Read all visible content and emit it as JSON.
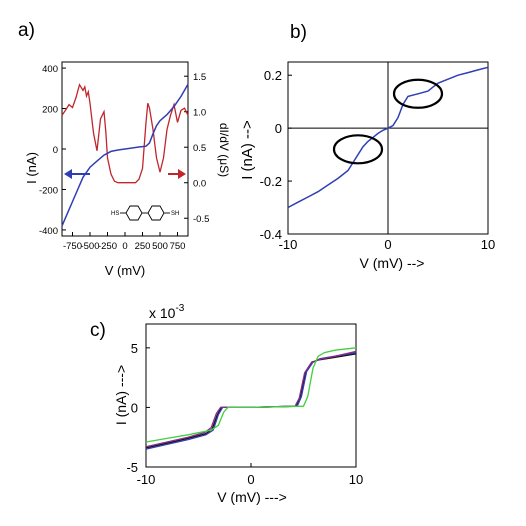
{
  "colors": {
    "blue": "#2f3fb3",
    "red": "#c0262b",
    "green": "#3fd13f",
    "black": "#111111",
    "purple": "#8a2a8a"
  },
  "chart_data": [
    {
      "panel": "a)",
      "type": "line",
      "xlabel": "V (mV)",
      "ylabel": "I (nA)",
      "ylabel_right": "dI/dV (μS)",
      "xlim": [
        -900,
        900
      ],
      "ylim": [
        -430,
        430
      ],
      "ylim_right": [
        -0.75,
        1.7
      ],
      "xticks": [
        "-750",
        "-500",
        "-250",
        "0",
        "250",
        "500",
        "750"
      ],
      "yticks": [
        "-400",
        "-200",
        "0",
        "200",
        "400"
      ],
      "yticks_right": [
        "-0.5",
        "0.0",
        "0.5",
        "1.0",
        "1.5"
      ],
      "grid": false,
      "series": [
        {
          "axis": "left",
          "color": "#2f3fb3",
          "x": [
            -900,
            -800,
            -700,
            -600,
            -500,
            -400,
            -300,
            -200,
            -100,
            0,
            100,
            200,
            250,
            300,
            350,
            400,
            450,
            500,
            600,
            700,
            800,
            900
          ],
          "y": [
            -380,
            -300,
            -220,
            -140,
            -90,
            -60,
            -30,
            -12,
            -5,
            0,
            5,
            10,
            12,
            14,
            30,
            75,
            115,
            140,
            170,
            210,
            260,
            320
          ]
        },
        {
          "axis": "right",
          "color": "#c0262b",
          "x": [
            -900,
            -850,
            -800,
            -750,
            -700,
            -650,
            -600,
            -575,
            -550,
            -525,
            -500,
            -450,
            -400,
            -350,
            -300,
            -275,
            -250,
            -200,
            -150,
            -100,
            0,
            100,
            150,
            200,
            250,
            300,
            325,
            350,
            400,
            450,
            500,
            550,
            600,
            650,
            700,
            750,
            800,
            850,
            900
          ],
          "y": [
            0.95,
            1.02,
            1.1,
            1.06,
            1.2,
            1.38,
            1.3,
            1.35,
            1.22,
            1.28,
            1.12,
            0.7,
            0.45,
            0.9,
            1.0,
            0.72,
            0.35,
            0.12,
            0.02,
            0.0,
            0.0,
            0.0,
            0.0,
            0.05,
            0.2,
            0.85,
            1.12,
            1.05,
            0.75,
            0.35,
            0.15,
            0.35,
            0.75,
            0.95,
            1.1,
            0.85,
            1.02,
            1.05,
            0.95
          ]
        }
      ],
      "annotations": {
        "arrow_left_color": "#2f3fb3",
        "arrow_right_color": "#c0262b",
        "inset": "biphenyl-dithiol molecule (HS … SH)"
      }
    },
    {
      "panel": "b)",
      "type": "line",
      "xlabel": "V (mV) -->",
      "ylabel": "I (nA) -->",
      "xlim": [
        -10,
        10
      ],
      "ylim": [
        -0.4,
        0.25
      ],
      "xticks": [
        "-10",
        "0",
        "10"
      ],
      "yticks": [
        "0.2",
        "0",
        "-0.2",
        "-0.4"
      ],
      "grid": false,
      "series": [
        {
          "color": "#2f3fb3",
          "x": [
            -10,
            -9,
            -8,
            -7,
            -6,
            -5,
            -4,
            -3,
            -2.5,
            -2,
            -1.5,
            -1,
            -0.5,
            0,
            0.5,
            1,
            1.5,
            2,
            3,
            4,
            4.5,
            5,
            6,
            7,
            8,
            9,
            10
          ],
          "y": [
            -0.3,
            -0.28,
            -0.26,
            -0.24,
            -0.215,
            -0.19,
            -0.16,
            -0.1,
            -0.07,
            -0.05,
            -0.035,
            -0.02,
            -0.008,
            0.0,
            0.01,
            0.04,
            0.09,
            0.12,
            0.13,
            0.14,
            0.155,
            0.17,
            0.185,
            0.2,
            0.21,
            0.22,
            0.23
          ]
        }
      ],
      "annotations": [
        {
          "shape": "ellipse",
          "cx": 3,
          "cy": 0.13
        },
        {
          "shape": "ellipse",
          "cx": -3,
          "cy": -0.08
        }
      ]
    },
    {
      "panel": "c)",
      "type": "line",
      "xlabel": "V (mV) --->",
      "ylabel": "I (nA) --->",
      "scale_note": "x 10-3",
      "xlim": [
        -10,
        10
      ],
      "ylim": [
        -5,
        7
      ],
      "xticks": [
        "-10",
        "0",
        "10"
      ],
      "yticks": [
        "5",
        "0",
        "-5"
      ],
      "grid": false,
      "series": [
        {
          "color": "#111111",
          "x": [
            -10,
            -8,
            -6,
            -4.3,
            -3.7,
            -3.2,
            -2.8,
            0,
            4.3,
            4.7,
            5.2,
            5.8,
            6.5,
            8,
            10
          ],
          "y": [
            -3.4,
            -3.0,
            -2.6,
            -2.2,
            -1.8,
            -0.6,
            0,
            0,
            0.1,
            0.9,
            3.0,
            3.8,
            4.0,
            4.2,
            4.5
          ]
        },
        {
          "color": "#2f3fb3",
          "x": [
            -10,
            -8,
            -6,
            -4.3,
            -3.6,
            -3.1,
            -2.7,
            0,
            4.4,
            4.8,
            5.3,
            5.9,
            6.6,
            8,
            10
          ],
          "y": [
            -3.5,
            -3.1,
            -2.7,
            -2.3,
            -1.9,
            -0.6,
            0,
            0,
            0.1,
            0.9,
            3.0,
            3.8,
            4.1,
            4.3,
            4.6
          ]
        },
        {
          "color": "#8a2a8a",
          "x": [
            -10,
            -8,
            -6,
            -4.4,
            -3.8,
            -3.3,
            -2.9,
            0,
            4.2,
            4.6,
            5.1,
            5.7,
            6.4,
            8,
            10
          ],
          "y": [
            -3.3,
            -2.9,
            -2.5,
            -2.1,
            -1.7,
            -0.5,
            0,
            0,
            0.1,
            0.8,
            2.9,
            3.7,
            4.0,
            4.3,
            4.7
          ]
        },
        {
          "color": "#3fd13f",
          "x": [
            -10,
            -8,
            -6,
            -3.8,
            -3.1,
            -2.6,
            -2.2,
            0,
            5.0,
            5.4,
            5.9,
            6.4,
            7.0,
            8,
            10
          ],
          "y": [
            -2.9,
            -2.6,
            -2.3,
            -1.9,
            -1.5,
            -0.4,
            0,
            0,
            0.1,
            0.9,
            3.3,
            4.3,
            4.6,
            4.8,
            5.0
          ]
        }
      ]
    }
  ]
}
